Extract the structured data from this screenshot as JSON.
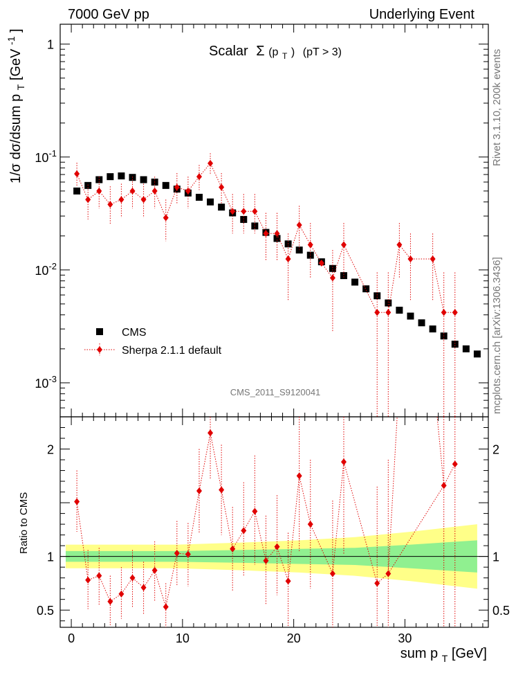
{
  "header": {
    "left": "7000 GeV pp",
    "right": "Underlying Event"
  },
  "plot_title": {
    "prefix": "Scalar",
    "sigma": "Σ",
    "pt": "(p",
    "t_sub": "T",
    "close": ")",
    "cut": "(pT >  3)"
  },
  "side_labels": {
    "rivet": "Rivet 3.1.10,  200k events",
    "mcplots": "mcplots.cern.ch [arXiv:1306.3436]"
  },
  "watermark": "CMS_2011_S9120041",
  "y_label_main": {
    "text": "1/σ dσ/dsum p",
    "sub": "T",
    "unit": " [GeV",
    "exp": "-1",
    "close": "]"
  },
  "y_label_ratio": "Ratio to CMS",
  "x_label": {
    "text": "sum p",
    "sub": "T",
    "unit": " [GeV]"
  },
  "legend": {
    "cms": "CMS",
    "sherpa": "Sherpa 2.1.1 default"
  },
  "colors": {
    "cms": "#000000",
    "sherpa": "#e00000",
    "band_inner": "#90f090",
    "band_outer": "#ffff88"
  },
  "chart_data": {
    "type": "scatter",
    "x_range": [
      -1,
      37.5
    ],
    "main": {
      "y_scale": "log",
      "ylim": [
        0.0005,
        1.5
      ],
      "y_ticks": [
        {
          "value": 1,
          "mant": "1",
          "exp": ""
        },
        {
          "value": 0.1,
          "mant": "10",
          "exp": "-1"
        },
        {
          "value": 0.01,
          "mant": "10",
          "exp": "-2"
        },
        {
          "value": 0.001,
          "mant": "10",
          "exp": "-3"
        }
      ]
    },
    "ratio": {
      "y_scale": "linear",
      "ylim": [
        0.34,
        2.3
      ],
      "y_ticks": [
        {
          "value": 0.5,
          "label": "0.5"
        },
        {
          "value": 1,
          "label": "1"
        },
        {
          "value": 1.5,
          "label": ""
        },
        {
          "value": 2,
          "label": "2"
        }
      ]
    },
    "x_ticks": [
      0,
      10,
      20,
      30
    ],
    "x": [
      0.5,
      1.5,
      2.5,
      3.5,
      4.5,
      5.5,
      6.5,
      7.5,
      8.5,
      9.5,
      10.5,
      11.5,
      12.5,
      13.5,
      14.5,
      15.5,
      16.5,
      17.5,
      18.5,
      19.5,
      20.5,
      21.5,
      22.5,
      23.5,
      24.5,
      25.5,
      26.5,
      27.5,
      28.5,
      29.5,
      30.5,
      31.5,
      32.5,
      33.5,
      34.5,
      35.5,
      36.5
    ],
    "cms": [
      0.05,
      0.056,
      0.063,
      0.067,
      0.068,
      0.066,
      0.063,
      0.06,
      0.056,
      0.052,
      0.048,
      0.044,
      0.04,
      0.036,
      0.032,
      0.028,
      0.0245,
      0.0215,
      0.019,
      0.017,
      0.015,
      0.0135,
      0.0118,
      0.0103,
      0.0089,
      0.0078,
      0.0068,
      0.0059,
      0.0051,
      0.0044,
      0.0039,
      0.0034,
      0.003,
      0.0026,
      0.0022,
      0.002,
      0.0018
    ],
    "sherpa": [
      {
        "x": 0.5,
        "y": 0.071,
        "lo": 0.055,
        "hi": 0.089
      },
      {
        "x": 1.5,
        "y": 0.042,
        "lo": 0.028,
        "hi": 0.057
      },
      {
        "x": 2.5,
        "y": 0.05,
        "lo": 0.035,
        "hi": 0.067
      },
      {
        "x": 3.5,
        "y": 0.038,
        "lo": 0.025,
        "hi": 0.055
      },
      {
        "x": 4.5,
        "y": 0.042,
        "lo": 0.029,
        "hi": 0.058
      },
      {
        "x": 5.5,
        "y": 0.05,
        "lo": 0.035,
        "hi": 0.067
      },
      {
        "x": 6.5,
        "y": 0.042,
        "lo": 0.029,
        "hi": 0.058
      },
      {
        "x": 7.5,
        "y": 0.05,
        "lo": 0.035,
        "hi": 0.067
      },
      {
        "x": 8.5,
        "y": 0.029,
        "lo": 0.018,
        "hi": 0.042
      },
      {
        "x": 9.5,
        "y": 0.054,
        "lo": 0.038,
        "hi": 0.072
      },
      {
        "x": 10.5,
        "y": 0.05,
        "lo": 0.035,
        "hi": 0.067
      },
      {
        "x": 11.5,
        "y": 0.067,
        "lo": 0.051,
        "hi": 0.085
      },
      {
        "x": 12.5,
        "y": 0.088,
        "lo": 0.069,
        "hi": 0.108
      },
      {
        "x": 13.5,
        "y": 0.054,
        "lo": 0.038,
        "hi": 0.072
      },
      {
        "x": 14.5,
        "y": 0.033,
        "lo": 0.021,
        "hi": 0.047
      },
      {
        "x": 15.5,
        "y": 0.033,
        "lo": 0.021,
        "hi": 0.047
      },
      {
        "x": 16.5,
        "y": 0.033,
        "lo": 0.021,
        "hi": 0.047
      },
      {
        "x": 17.5,
        "y": 0.021,
        "lo": 0.012,
        "hi": 0.032
      },
      {
        "x": 18.5,
        "y": 0.021,
        "lo": 0.012,
        "hi": 0.032
      },
      {
        "x": 19.5,
        "y": 0.0125,
        "lo": 0.0053,
        "hi": 0.021
      },
      {
        "x": 20.5,
        "y": 0.025,
        "lo": 0.015,
        "hi": 0.037
      },
      {
        "x": 21.5,
        "y": 0.0167,
        "lo": 0.0085,
        "hi": 0.026
      },
      {
        "x": 22.5,
        "y": 0.0115,
        "lo": 0.0115,
        "hi": 0.0115
      },
      {
        "x": 23.5,
        "y": 0.0085,
        "lo": 0.0028,
        "hi": 0.015
      },
      {
        "x": 24.5,
        "y": 0.0167,
        "lo": 0.0085,
        "hi": 0.026
      },
      {
        "x": 27.5,
        "y": 0.0042,
        "lo": 0.0003,
        "hi": 0.0095
      },
      {
        "x": 28.5,
        "y": 0.0042,
        "lo": 0.0003,
        "hi": 0.0095
      },
      {
        "x": 29.5,
        "y": 0.0167,
        "lo": 0.0085,
        "hi": 0.026
      },
      {
        "x": 30.5,
        "y": 0.0125,
        "lo": 0.0053,
        "hi": 0.021
      },
      {
        "x": 32.5,
        "y": 0.0125,
        "lo": 0.0053,
        "hi": 0.021
      },
      {
        "x": 33.5,
        "y": 0.0042,
        "lo": 0.0003,
        "hi": 0.0095
      },
      {
        "x": 34.5,
        "y": 0.0042,
        "lo": 0.0003,
        "hi": 0.0095
      }
    ],
    "ratio_points": [
      {
        "x": 0.5,
        "y": 1.51,
        "lo": 1.23,
        "hi": 1.8
      },
      {
        "x": 1.5,
        "y": 0.78,
        "lo": 0.51,
        "hi": 1.06
      },
      {
        "x": 2.5,
        "y": 0.82,
        "lo": 0.55,
        "hi": 1.08
      },
      {
        "x": 3.5,
        "y": 0.58,
        "lo": 0.36,
        "hi": 0.82
      },
      {
        "x": 4.5,
        "y": 0.65,
        "lo": 0.42,
        "hi": 0.9
      },
      {
        "x": 5.5,
        "y": 0.8,
        "lo": 0.53,
        "hi": 1.06
      },
      {
        "x": 6.5,
        "y": 0.71,
        "lo": 0.46,
        "hi": 0.95
      },
      {
        "x": 7.5,
        "y": 0.87,
        "lo": 0.58,
        "hi": 1.14
      },
      {
        "x": 8.5,
        "y": 0.53,
        "lo": 0.32,
        "hi": 0.75
      },
      {
        "x": 9.5,
        "y": 1.03,
        "lo": 0.73,
        "hi": 1.33
      },
      {
        "x": 10.5,
        "y": 1.02,
        "lo": 0.72,
        "hi": 1.31
      },
      {
        "x": 11.5,
        "y": 1.61,
        "lo": 1.22,
        "hi": 2.0
      },
      {
        "x": 12.5,
        "y": 2.15,
        "lo": 1.72,
        "hi": 2.58
      },
      {
        "x": 13.5,
        "y": 1.62,
        "lo": 1.2,
        "hi": 2.04
      },
      {
        "x": 14.5,
        "y": 1.07,
        "lo": 0.68,
        "hi": 1.46
      },
      {
        "x": 15.5,
        "y": 1.24,
        "lo": 0.81,
        "hi": 1.69
      },
      {
        "x": 16.5,
        "y": 1.42,
        "lo": 0.92,
        "hi": 1.94
      },
      {
        "x": 17.5,
        "y": 0.96,
        "lo": 0.55,
        "hi": 1.38
      },
      {
        "x": 18.5,
        "y": 1.09,
        "lo": 0.64,
        "hi": 1.57
      },
      {
        "x": 19.5,
        "y": 0.77,
        "lo": 0.34,
        "hi": 1.22
      },
      {
        "x": 20.5,
        "y": 1.75,
        "lo": 1.05,
        "hi": 2.45
      },
      {
        "x": 21.5,
        "y": 1.3,
        "lo": 0.7,
        "hi": 1.9
      },
      {
        "x": 23.5,
        "y": 0.84,
        "lo": 0.34,
        "hi": 1.52
      },
      {
        "x": 24.5,
        "y": 1.88,
        "lo": 1.02,
        "hi": 2.7
      },
      {
        "x": 27.5,
        "y": 0.75,
        "lo": 0.34,
        "hi": 1.65
      },
      {
        "x": 28.5,
        "y": 0.84,
        "lo": 0.34,
        "hi": 1.9
      },
      {
        "x": 33.5,
        "y": 1.66,
        "lo": 0.34,
        "hi": 2.7
      },
      {
        "x": 34.5,
        "y": 1.86,
        "lo": 0.34,
        "hi": 2.7
      }
    ],
    "band": {
      "x": [
        -0.5,
        9.5,
        15.5,
        20.5,
        25.5,
        30.5,
        36.5
      ],
      "inner": [
        0.05,
        0.05,
        0.06,
        0.07,
        0.08,
        0.11,
        0.15
      ],
      "outer": [
        0.11,
        0.11,
        0.13,
        0.15,
        0.18,
        0.23,
        0.3
      ]
    }
  }
}
